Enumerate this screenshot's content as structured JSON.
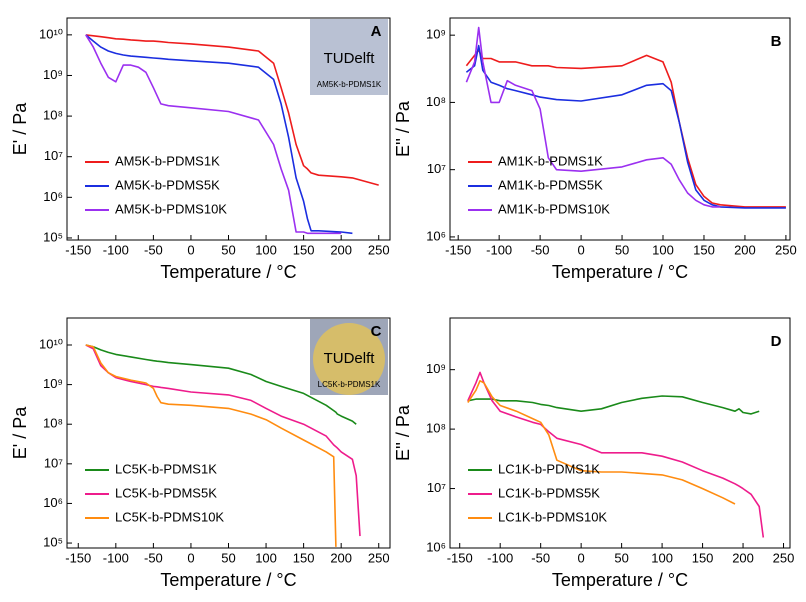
{
  "chart_data": [
    {
      "type": "line",
      "panel": "A",
      "xlabel": "Temperature / °C",
      "ylabel": "E' / Pa",
      "log_y": true,
      "legend": "lower left",
      "inset": {
        "logo": "TUDelft",
        "caption": "AM5K-b-PDMS1K"
      },
      "xlim": [
        -165,
        265
      ],
      "xticks": [
        -150,
        -100,
        -50,
        0,
        50,
        100,
        150,
        200,
        250
      ],
      "ylim": [
        89000,
        26000000000
      ],
      "yticks": [
        {
          "value": 100000,
          "label": "10⁵"
        },
        {
          "value": 1000000,
          "label": "10⁶"
        },
        {
          "value": 10000000,
          "label": "10⁷"
        },
        {
          "value": 100000000,
          "label": "10⁸"
        },
        {
          "value": 1000000000,
          "label": "10⁹"
        },
        {
          "value": 10000000000,
          "label": "10¹⁰"
        }
      ],
      "x": [
        -140,
        -130,
        -120,
        -110,
        -100,
        -90,
        -80,
        -70,
        -60,
        -50,
        -40,
        -30,
        0,
        50,
        90,
        110,
        120,
        130,
        140,
        150,
        155,
        160,
        170,
        200,
        215,
        250
      ],
      "series": [
        {
          "name": "AM5K-b-PDMS1K",
          "color": "#ee1c1c",
          "values": [
            10000000000,
            9500000000,
            9000000000,
            8500000000,
            8000000000,
            7800000000,
            7500000000,
            7300000000,
            7000000000,
            7000000000,
            6800000000,
            6500000000,
            6000000000,
            5000000000,
            4000000000,
            2000000000,
            500000000,
            120000000,
            20000000,
            6000000,
            5000000,
            4000000,
            3500000,
            3200000,
            3000000,
            2000000
          ]
        },
        {
          "name": "AM5K-b-PDMS5K",
          "color": "#1b2ee0",
          "values": [
            10000000000,
            7000000000,
            5000000000,
            4000000000,
            3500000000,
            3200000000,
            3000000000,
            2900000000,
            2800000000,
            2700000000,
            2600000000,
            2500000000,
            2300000000,
            2000000000,
            1600000000,
            800000000,
            200000000,
            30000000,
            3000000,
            800000,
            300000,
            150000,
            150000,
            140000,
            130000,
            null
          ]
        },
        {
          "name": "AM5K-b-PDMS10K",
          "color": "#9b30f0",
          "values": [
            10000000000,
            5000000000,
            2000000000,
            900000000,
            700000000,
            1800000000,
            1800000000,
            1600000000,
            1200000000,
            500000000,
            200000000,
            180000000,
            160000000,
            130000000,
            80000000,
            20000000,
            5000000,
            1500000,
            140000,
            140000,
            130000,
            130000,
            130000,
            130000,
            null,
            null
          ]
        }
      ]
    },
    {
      "type": "line",
      "panel": "B",
      "xlabel": "Temperature / °C",
      "ylabel": "E'' / Pa",
      "log_y": true,
      "legend": "lower left",
      "xlim": [
        -160,
        255
      ],
      "xticks": [
        -150,
        -100,
        -50,
        0,
        50,
        100,
        150,
        200,
        250
      ],
      "ylim": [
        900000,
        1800000000
      ],
      "yticks": [
        {
          "value": 1000000,
          "label": "10⁶"
        },
        {
          "value": 10000000,
          "label": "10⁷"
        },
        {
          "value": 100000000,
          "label": "10⁸"
        },
        {
          "value": 1000000000,
          "label": "10⁹"
        }
      ],
      "x": [
        -140,
        -130,
        -125,
        -120,
        -110,
        -100,
        -90,
        -80,
        -60,
        -50,
        -40,
        -30,
        0,
        50,
        80,
        100,
        110,
        120,
        130,
        140,
        150,
        160,
        170,
        200,
        250
      ],
      "series": [
        {
          "name": "AM1K-b-PDMS1K",
          "color": "#ee1c1c",
          "values": [
            350000000,
            500000000,
            600000000,
            450000000,
            450000000,
            400000000,
            400000000,
            400000000,
            350000000,
            350000000,
            350000000,
            330000000,
            320000000,
            350000000,
            500000000,
            400000000,
            200000000,
            50000000,
            15000000,
            6000000,
            4000000,
            3200000,
            3000000,
            2800000,
            2800000
          ]
        },
        {
          "name": "AM1K-b-PDMS5K",
          "color": "#1b2ee0",
          "values": [
            280000000,
            350000000,
            700000000,
            300000000,
            200000000,
            180000000,
            160000000,
            150000000,
            130000000,
            120000000,
            115000000,
            110000000,
            105000000,
            130000000,
            180000000,
            190000000,
            150000000,
            50000000,
            13000000,
            5000000,
            3500000,
            3000000,
            2800000,
            2700000,
            2700000
          ]
        },
        {
          "name": "AM1K-b-PDMS10K",
          "color": "#9b30f0",
          "values": [
            200000000,
            400000000,
            1300000000,
            400000000,
            100000000,
            100000000,
            210000000,
            180000000,
            150000000,
            80000000,
            15000000,
            10000000,
            9500000,
            11000000,
            14000000,
            15000000,
            12000000,
            7000000,
            4500000,
            3500000,
            3000000,
            2800000,
            2800000,
            null,
            null
          ]
        }
      ]
    },
    {
      "type": "line",
      "panel": "C",
      "xlabel": "Temperature / °C",
      "ylabel": "E' / Pa",
      "log_y": true,
      "legend": "lower left",
      "inset": {
        "logo": "TUDelft",
        "caption": "LC5K-b-PDMS1K"
      },
      "xlim": [
        -165,
        265
      ],
      "xticks": [
        -150,
        -100,
        -50,
        0,
        50,
        100,
        150,
        200,
        250
      ],
      "ylim": [
        75000,
        48000000000
      ],
      "yticks": [
        {
          "value": 100000,
          "label": "10⁵"
        },
        {
          "value": 1000000,
          "label": "10⁶"
        },
        {
          "value": 10000000,
          "label": "10⁷"
        },
        {
          "value": 100000000,
          "label": "10⁸"
        },
        {
          "value": 1000000000,
          "label": "10⁹"
        },
        {
          "value": 10000000000,
          "label": "10¹⁰"
        }
      ],
      "x": [
        -140,
        -130,
        -120,
        -110,
        -100,
        -80,
        -60,
        -50,
        -45,
        -40,
        -30,
        0,
        50,
        80,
        100,
        120,
        150,
        180,
        190,
        193,
        195,
        200,
        215,
        220,
        225
      ],
      "series": [
        {
          "name": "LC5K-b-PDMS1K",
          "color": "#1a8a1a",
          "values": [
            10000000000,
            9000000000,
            7500000000,
            6500000000,
            5800000000,
            5000000000,
            4300000000,
            4000000000,
            3900000000,
            3800000000,
            3600000000,
            3200000000,
            2600000000,
            1800000000,
            1200000000,
            900000000,
            600000000,
            300000000,
            220000000,
            200000000,
            180000000,
            160000000,
            120000000,
            100000000,
            null
          ]
        },
        {
          "name": "LC5K-b-PDMS5K",
          "color": "#ee1c8c",
          "values": [
            10000000000,
            8000000000,
            3000000000,
            2000000000,
            1500000000,
            1200000000,
            1000000000,
            900000000,
            880000000,
            850000000,
            800000000,
            650000000,
            550000000,
            400000000,
            250000000,
            160000000,
            100000000,
            50000000,
            30000000,
            27000000,
            25000000,
            20000000,
            13000000,
            5000000,
            150000
          ]
        },
        {
          "name": "LC5K-b-PDMS10K",
          "color": "#ff8c10",
          "values": [
            10000000000,
            9000000000,
            3500000000,
            2000000000,
            1600000000,
            1300000000,
            1100000000,
            800000000,
            500000000,
            350000000,
            320000000,
            300000000,
            250000000,
            180000000,
            130000000,
            80000000,
            40000000,
            20000000,
            15000000,
            80000,
            null,
            null,
            null,
            null,
            null
          ]
        }
      ]
    },
    {
      "type": "line",
      "panel": "D",
      "xlabel": "Temperature / °C",
      "ylabel": "E'' / Pa",
      "log_y": true,
      "legend": "lower left",
      "xlim": [
        -162,
        258
      ],
      "xticks": [
        -150,
        -100,
        -50,
        0,
        50,
        100,
        150,
        200,
        250
      ],
      "ylim": [
        1000000,
        7400000000
      ],
      "yticks": [
        {
          "value": 1000000,
          "label": "10⁶"
        },
        {
          "value": 10000000,
          "label": "10⁷"
        },
        {
          "value": 100000000,
          "label": "10⁸"
        },
        {
          "value": 1000000000,
          "label": "10⁹"
        }
      ],
      "x": [
        -140,
        -130,
        -125,
        -120,
        -110,
        -100,
        -80,
        -60,
        -50,
        -40,
        -30,
        0,
        25,
        50,
        75,
        100,
        125,
        150,
        175,
        190,
        195,
        200,
        210,
        220,
        225
      ],
      "series": [
        {
          "name": "LC1K-b-PDMS1K",
          "color": "#1a8a1a",
          "values": [
            300000000,
            320000000,
            320000000,
            320000000,
            320000000,
            300000000,
            300000000,
            280000000,
            260000000,
            250000000,
            230000000,
            200000000,
            220000000,
            280000000,
            330000000,
            360000000,
            350000000,
            280000000,
            230000000,
            200000000,
            220000000,
            190000000,
            180000000,
            200000000,
            null
          ]
        },
        {
          "name": "LC1K-b-PDMS5K",
          "color": "#ee1c8c",
          "values": [
            300000000,
            600000000,
            900000000,
            600000000,
            300000000,
            200000000,
            160000000,
            130000000,
            120000000,
            90000000,
            70000000,
            55000000,
            40000000,
            40000000,
            40000000,
            35000000,
            28000000,
            20000000,
            15000000,
            12000000,
            11000000,
            10000000,
            8000000,
            5000000,
            1500000
          ]
        },
        {
          "name": "LC1K-b-PDMS10K",
          "color": "#ff8c10",
          "values": [
            280000000,
            450000000,
            650000000,
            600000000,
            350000000,
            250000000,
            200000000,
            150000000,
            130000000,
            80000000,
            30000000,
            20000000,
            19000000,
            19000000,
            18000000,
            17000000,
            14000000,
            10000000,
            7000000,
            5500000,
            null,
            null,
            null,
            null,
            null
          ]
        }
      ]
    }
  ]
}
